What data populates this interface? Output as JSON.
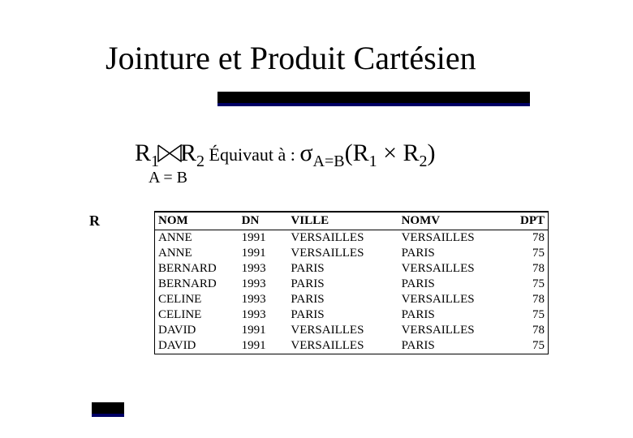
{
  "title": "Jointure et Produit Cartésien",
  "formula": {
    "R1": "R",
    "R1sub": "1",
    "R2": "R",
    "R2sub": "2",
    "equiv": "  Équivaut à :  ",
    "sigma": "σ",
    "sigmasub": "A=B",
    "open": "(R",
    "s1": "1",
    "times": " × R",
    "s2": "2",
    "close": ")"
  },
  "cond": "A = B",
  "table_label": "R",
  "columns": [
    "NOM",
    "DN",
    "VILLE",
    "NOMV",
    "DPT"
  ],
  "rows": [
    [
      "ANNE",
      "1991",
      "VERSAILLES",
      "VERSAILLES",
      "78"
    ],
    [
      "ANNE",
      "1991",
      "VERSAILLES",
      "PARIS",
      "75"
    ],
    [
      "BERNARD",
      "1993",
      "PARIS",
      "VERSAILLES",
      "78"
    ],
    [
      "BERNARD",
      "1993",
      "PARIS",
      "PARIS",
      "75"
    ],
    [
      "CELINE",
      "1993",
      "PARIS",
      "VERSAILLES",
      "78"
    ],
    [
      "CELINE",
      "1993",
      "PARIS",
      "PARIS",
      "75"
    ],
    [
      "DAVID",
      "1991",
      "VERSAILLES",
      "VERSAILLES",
      "78"
    ],
    [
      "DAVID",
      "1991",
      "VERSAILLES",
      "PARIS",
      "75"
    ]
  ],
  "colors": {
    "rule_main": "#000000",
    "rule_accent": "#000066",
    "bg": "#ffffff",
    "text": "#000000"
  },
  "fonts": {
    "title_size_pt": 40,
    "formula_size_pt": 30,
    "body_size_pt": 15
  }
}
